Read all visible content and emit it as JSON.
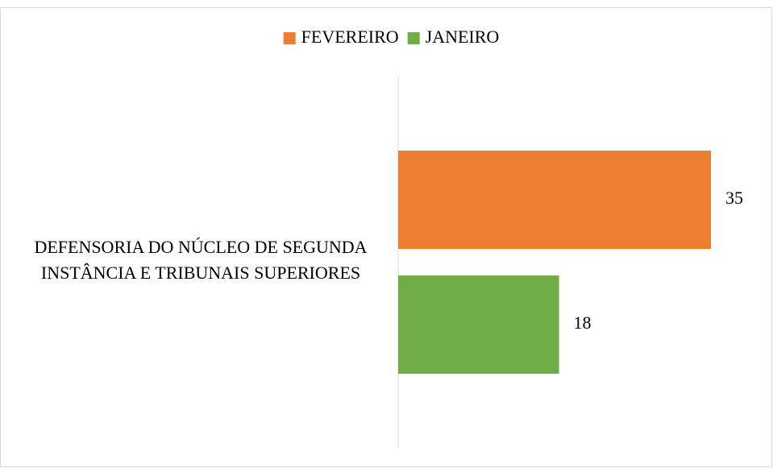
{
  "chart_data": {
    "type": "barh",
    "categories": [
      "DEFENSORIA DO NÚCLEO DE SEGUNDA INSTÂNCIA E TRIBUNAIS SUPERIORES"
    ],
    "series": [
      {
        "name": "FEVEREIRO",
        "color": "#ed7d31",
        "values": [
          35
        ]
      },
      {
        "name": "JANEIRO",
        "color": "#70ad47",
        "values": [
          18
        ]
      }
    ],
    "xlim": [
      0,
      40
    ],
    "legend": "top"
  }
}
